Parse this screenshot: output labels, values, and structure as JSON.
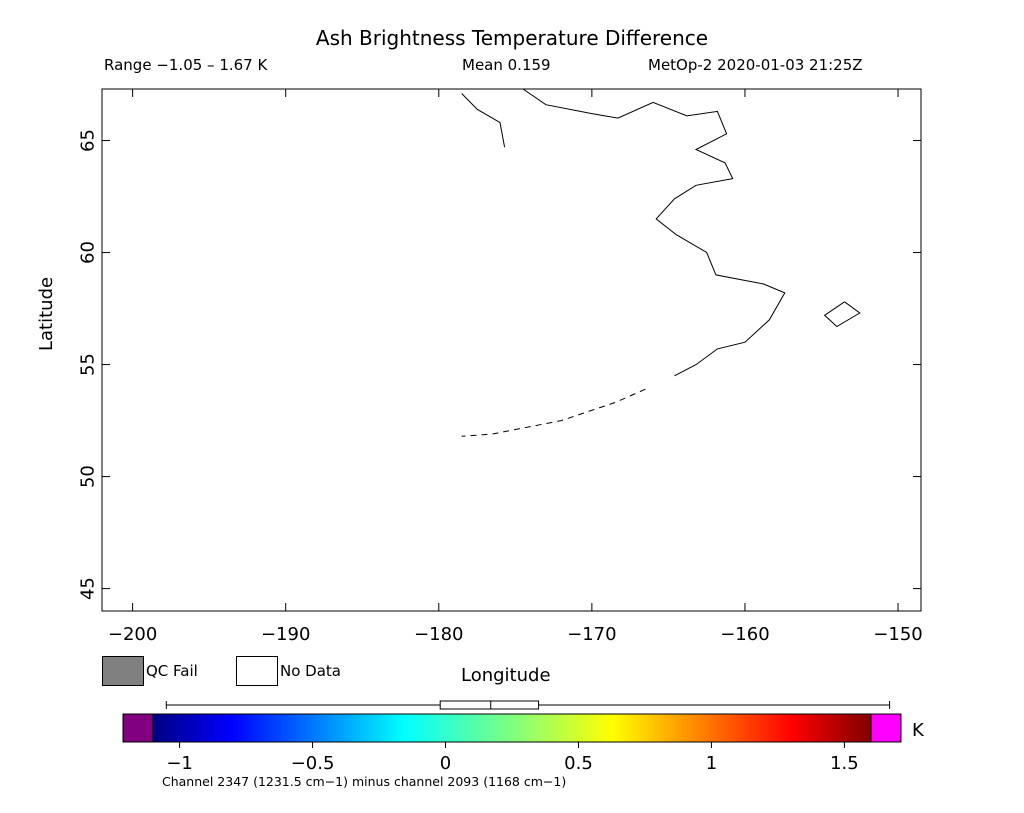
{
  "header": {
    "title": "Ash Brightness Temperature Difference",
    "range_text": "Range −1.05 – 1.67 K",
    "mean_text": "Mean 0.159",
    "satellite_time": "MetOp-2 2020-01-03 21:25Z"
  },
  "axes": {
    "xlabel": "Longitude",
    "ylabel": "Latitude",
    "x_ticks": [
      -200,
      -190,
      -180,
      -170,
      -160,
      -150
    ],
    "x_tick_labels": [
      "−200",
      "−190",
      "−180",
      "−170",
      "−160",
      "−150"
    ],
    "y_ticks": [
      45,
      50,
      55,
      60,
      65
    ],
    "y_tick_labels": [
      "45",
      "50",
      "55",
      "60",
      "65"
    ],
    "xlim": [
      -202,
      -148.5
    ],
    "ylim": [
      44,
      67.3
    ]
  },
  "legend": {
    "qc_fail": {
      "label": "QC Fail",
      "color": "#808080"
    },
    "no_data": {
      "label": "No Data",
      "color": "#ffffff"
    }
  },
  "colorbar": {
    "unit": "K",
    "range": [
      -1.1,
      1.6
    ],
    "ticks": [
      -1,
      -0.5,
      0,
      0.5,
      1,
      1.5
    ],
    "tick_labels": [
      "−1",
      "−0.5",
      "0",
      "0.5",
      "1",
      "1.5"
    ],
    "under_color": "#800080",
    "over_color": "#ff00ff",
    "colormap": "jet",
    "whisker": {
      "min": -1.05,
      "q1": -0.02,
      "median": 0.17,
      "q3": 0.35,
      "max": 1.67
    }
  },
  "footnote": "Channel 2347 (1231.5 cm−1) minus channel 2093 (1168 cm−1)"
}
